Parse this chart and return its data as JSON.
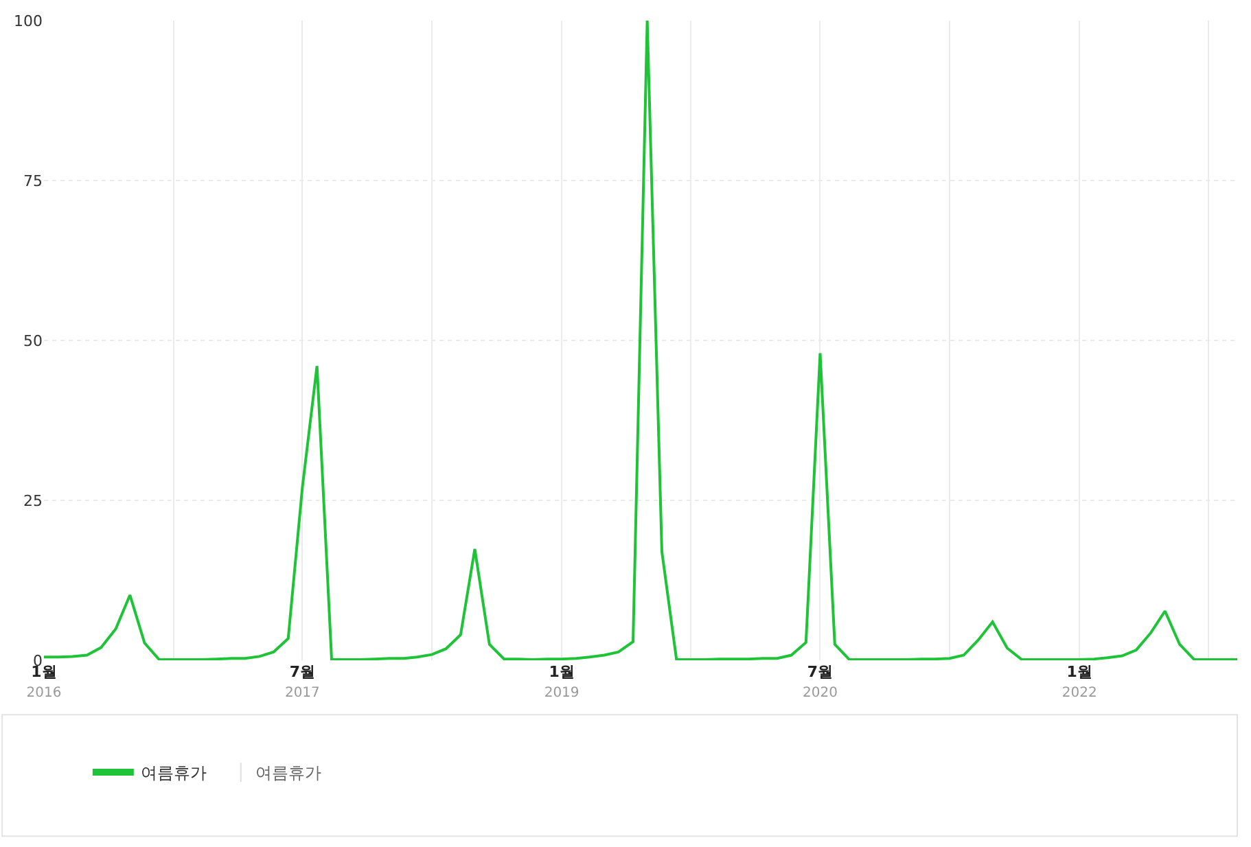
{
  "chart_data": {
    "type": "line",
    "x": [
      "2016-01",
      "2016-02",
      "2016-03",
      "2016-04",
      "2016-05",
      "2016-06",
      "2016-07",
      "2016-08",
      "2016-09",
      "2016-10",
      "2016-11",
      "2016-12",
      "2017-01",
      "2017-02",
      "2017-03",
      "2017-04",
      "2017-05",
      "2017-06",
      "2017-07",
      "2017-08",
      "2017-09",
      "2017-10",
      "2017-11",
      "2017-12",
      "2018-01",
      "2018-02",
      "2018-03",
      "2018-04",
      "2018-05",
      "2018-06",
      "2018-07",
      "2018-08",
      "2018-09",
      "2018-10",
      "2018-11",
      "2018-12",
      "2019-01",
      "2019-02",
      "2019-03",
      "2019-04",
      "2019-05",
      "2019-06",
      "2019-07",
      "2019-08",
      "2019-09",
      "2019-10",
      "2019-11",
      "2019-12",
      "2020-01",
      "2020-02",
      "2020-03",
      "2020-04",
      "2020-05",
      "2020-06",
      "2020-07",
      "2020-08",
      "2020-09",
      "2020-10",
      "2020-11",
      "2020-12",
      "2021-01",
      "2021-02",
      "2021-03",
      "2021-04",
      "2021-05",
      "2021-06",
      "2021-07",
      "2021-08",
      "2021-09",
      "2021-10",
      "2021-11",
      "2021-12",
      "2022-01",
      "2022-02",
      "2022-03",
      "2022-04",
      "2022-05",
      "2022-06",
      "2022-07",
      "2022-08",
      "2022-09",
      "2022-10",
      "2022-11",
      "2022-12"
    ],
    "series": [
      {
        "name": "여름휴가",
        "color": "#1ec337",
        "values": [
          0.5,
          0.5,
          0.6,
          0.8,
          2.0,
          4.9,
          10.2,
          2.7,
          0.1,
          0.1,
          0.1,
          0.1,
          0.2,
          0.3,
          0.3,
          0.6,
          1.3,
          3.4,
          27,
          46,
          0.1,
          0.1,
          0.1,
          0.2,
          0.3,
          0.3,
          0.5,
          0.9,
          1.8,
          4.0,
          17.4,
          2.5,
          0.2,
          0.2,
          0.1,
          0.2,
          0.2,
          0.3,
          0.5,
          0.8,
          1.3,
          2.9,
          100,
          17,
          0.1,
          0.1,
          0.1,
          0.2,
          0.2,
          0.2,
          0.3,
          0.3,
          0.8,
          2.8,
          48,
          2.5,
          0.1,
          0.1,
          0.1,
          0.1,
          0.1,
          0.2,
          0.2,
          0.3,
          0.8,
          3.2,
          6.0,
          1.9,
          0.1,
          0.1,
          0.1,
          0.1,
          0.1,
          0.2,
          0.4,
          0.7,
          1.6,
          4.3,
          7.7,
          2.5,
          0.1,
          0.1,
          0.1,
          0.1
        ]
      }
    ],
    "xlim": [
      "2016-01",
      "2022-12"
    ],
    "xticks": [
      {
        "value": "2016-01",
        "label": "1월\n2016"
      },
      {
        "value": "2016-10",
        "label": null
      },
      {
        "value": "2017-07",
        "label": "7월\n2017"
      },
      {
        "value": "2018-04",
        "label": null
      },
      {
        "value": "2019-01",
        "label": "1월\n2019"
      },
      {
        "value": "2019-10",
        "label": null
      },
      {
        "value": "2020-07",
        "label": "7월\n2020"
      },
      {
        "value": "2021-04",
        "label": null
      },
      {
        "value": "2022-01",
        "label": "1월\n2022"
      },
      {
        "value": "2022-10",
        "label": null
      }
    ],
    "ylim": [
      0,
      100
    ],
    "yticks": [
      0,
      25,
      50,
      75,
      100
    ],
    "grid": true,
    "legend": "bottom",
    "marker": "none",
    "line_style": "solid",
    "annotations": [
      "여름휴가"
    ]
  }
}
